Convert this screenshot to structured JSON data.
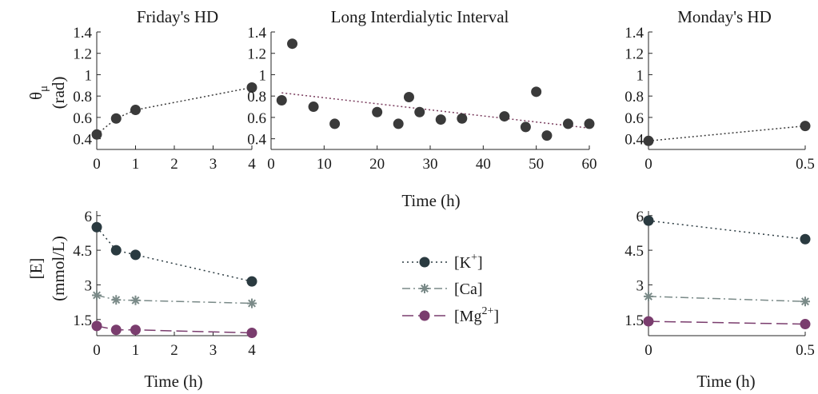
{
  "colors": {
    "k": "#2a3a40",
    "ca": "#7a8a88",
    "mg": "#7a3d6e",
    "theta": "#3a3a3a",
    "theta_trend": "#7a3d5e"
  },
  "legend": {
    "k": "[K",
    "k_sup": "+",
    "ca": "[Ca]",
    "mg": "[Mg",
    "mg_sup": "2+",
    "close": "]"
  },
  "chart_data": [
    {
      "id": "theta-friday",
      "type": "scatter",
      "title": "Friday's HD",
      "xlabel": "",
      "ylabel": "θ_μ (rad)",
      "ylabel_main": "θ",
      "ylabel_sub": "μ",
      "ylabel_unit": "(rad)",
      "xlim": [
        0,
        4
      ],
      "ylim": [
        0.3,
        1.4
      ],
      "xticks": [
        "0",
        "1",
        "2",
        "3",
        "4"
      ],
      "xtick_values": [
        0,
        1,
        2,
        3,
        4
      ],
      "yticks": [
        "0.4",
        "0.6",
        "0.8",
        "1",
        "1.2",
        "1.4"
      ],
      "ytick_values": [
        0.4,
        0.6,
        0.8,
        1,
        1.2,
        1.4
      ],
      "series": [
        {
          "x": [
            0,
            0.5,
            1,
            4
          ],
          "y": [
            0.44,
            0.59,
            0.67,
            0.88
          ],
          "line": "connect"
        }
      ]
    },
    {
      "id": "theta-interval",
      "type": "scatter",
      "title": "Long Interdialytic Interval",
      "xlabel": "Time (h)",
      "ylabel": "",
      "xlim": [
        0,
        60
      ],
      "ylim": [
        0.3,
        1.4
      ],
      "xticks": [
        "0",
        "10",
        "20",
        "30",
        "40",
        "50",
        "60"
      ],
      "xtick_values": [
        0,
        10,
        20,
        30,
        40,
        50,
        60
      ],
      "yticks": [
        "0.4",
        "0.6",
        "0.8",
        "1",
        "1.2",
        "1.4"
      ],
      "ytick_values": [
        0.4,
        0.6,
        0.8,
        1,
        1.2,
        1.4
      ],
      "series": [
        {
          "x": [
            2,
            4,
            8,
            12,
            20,
            24,
            26,
            28,
            32,
            36,
            44,
            48,
            50,
            52,
            56,
            60
          ],
          "y": [
            0.76,
            1.29,
            0.7,
            0.54,
            0.65,
            0.54,
            0.79,
            0.65,
            0.58,
            0.59,
            0.61,
            0.51,
            0.84,
            0.43,
            0.54,
            0.54
          ],
          "line": "trend",
          "trend": [
            [
              2,
              0.83
            ],
            [
              60,
              0.5
            ]
          ]
        }
      ]
    },
    {
      "id": "theta-monday",
      "type": "scatter",
      "title": "Monday's HD",
      "xlabel": "",
      "ylabel": "",
      "xlim": [
        0,
        0.5
      ],
      "ylim": [
        0.3,
        1.4
      ],
      "xticks": [
        "0",
        "0.5"
      ],
      "xtick_values": [
        0,
        0.5
      ],
      "yticks": [
        "0.4",
        "0.6",
        "0.8",
        "1",
        "1.2",
        "1.4"
      ],
      "ytick_values": [
        0.4,
        0.6,
        0.8,
        1,
        1.2,
        1.4
      ],
      "series": [
        {
          "x": [
            0,
            0.5
          ],
          "y": [
            0.38,
            0.52
          ],
          "line": "connect"
        }
      ]
    },
    {
      "id": "conc-friday",
      "type": "line",
      "title": "",
      "xlabel": "Time (h)",
      "ylabel": "[E] (mmol/L)",
      "ylabel_main": "[E]",
      "ylabel_unit": "(mmol/L)",
      "xlim": [
        0,
        4
      ],
      "ylim": [
        0.8,
        6.2
      ],
      "xticks": [
        "0",
        "1",
        "2",
        "3",
        "4"
      ],
      "xtick_values": [
        0,
        1,
        2,
        3,
        4
      ],
      "yticks": [
        "1.5",
        "3",
        "4.5",
        "6"
      ],
      "ytick_values": [
        1.5,
        3,
        4.5,
        6
      ],
      "series": [
        {
          "name": "[K+]",
          "key": "k",
          "x": [
            0,
            0.5,
            1,
            4
          ],
          "y": [
            5.5,
            4.5,
            4.3,
            3.15
          ]
        },
        {
          "name": "[Ca]",
          "key": "ca",
          "x": [
            0,
            0.5,
            1,
            4
          ],
          "y": [
            2.55,
            2.35,
            2.33,
            2.2
          ]
        },
        {
          "name": "[Mg2+]",
          "key": "mg",
          "x": [
            0,
            0.5,
            1,
            4
          ],
          "y": [
            1.22,
            1.05,
            1.05,
            0.92
          ]
        }
      ]
    },
    {
      "id": "conc-monday",
      "type": "line",
      "title": "",
      "xlabel": "Time (h)",
      "ylabel": "",
      "xlim": [
        0,
        0.5
      ],
      "ylim": [
        0.8,
        6.2
      ],
      "xticks": [
        "0",
        "0.5"
      ],
      "xtick_values": [
        0,
        0.5
      ],
      "yticks": [
        "1.5",
        "3",
        "4.5",
        "6"
      ],
      "ytick_values": [
        1.5,
        3,
        4.5,
        6
      ],
      "series": [
        {
          "name": "[K+]",
          "key": "k",
          "x": [
            0,
            0.5
          ],
          "y": [
            5.78,
            4.98
          ]
        },
        {
          "name": "[Ca]",
          "key": "ca",
          "x": [
            0,
            0.5
          ],
          "y": [
            2.5,
            2.28
          ]
        },
        {
          "name": "[Mg2+]",
          "key": "mg",
          "x": [
            0,
            0.5
          ],
          "y": [
            1.42,
            1.3
          ]
        }
      ]
    }
  ]
}
